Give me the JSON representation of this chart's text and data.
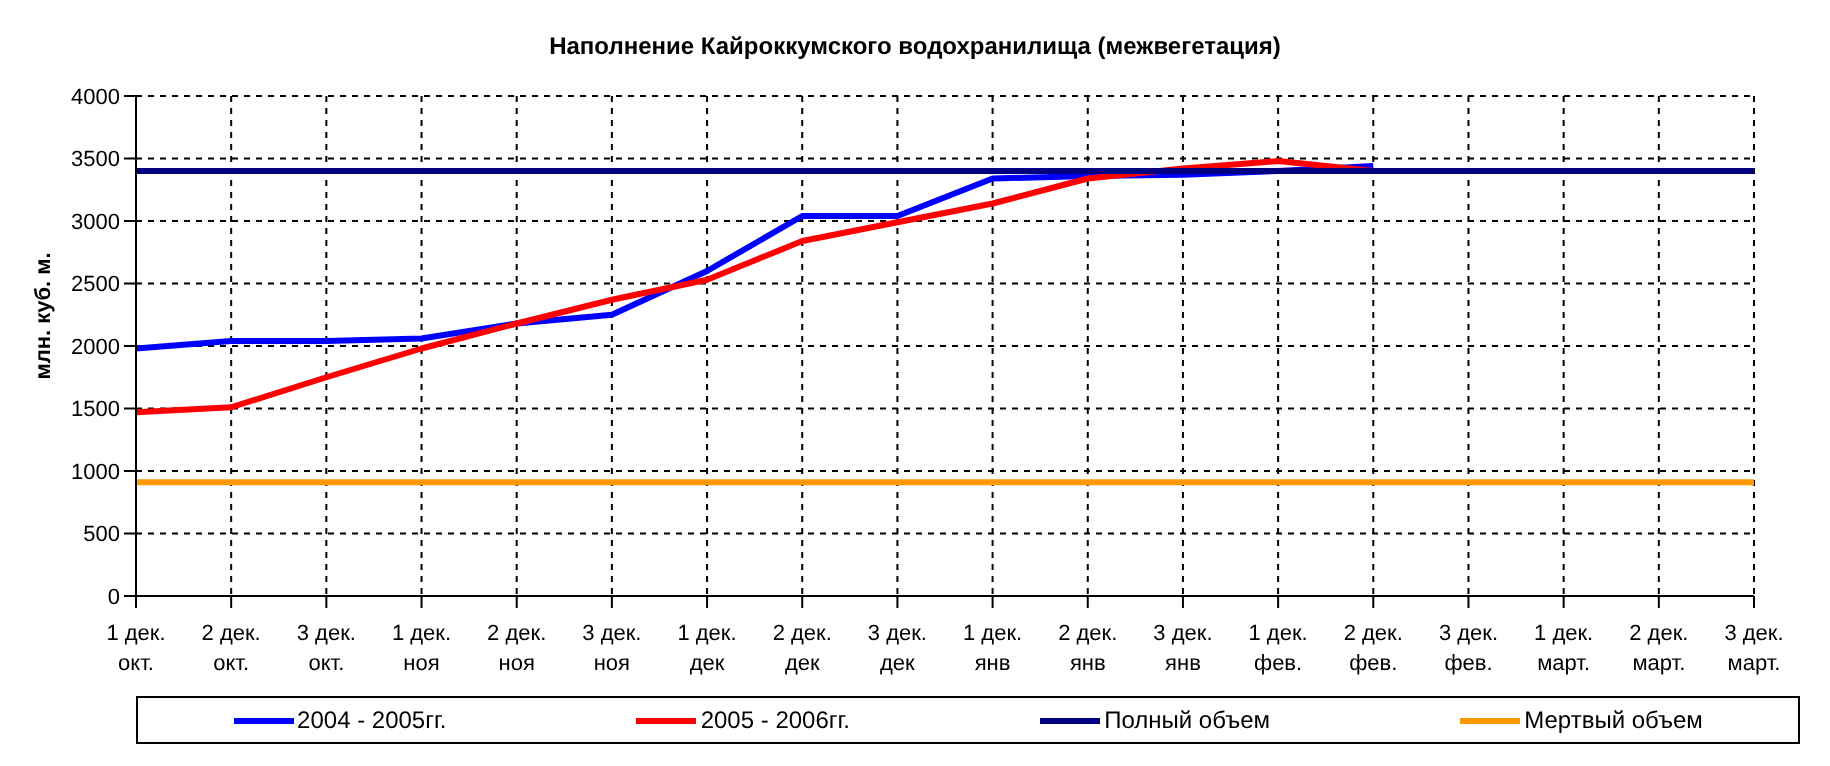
{
  "chart_data": {
    "type": "line",
    "title": "Наполнение Кайроккумского водохранилища (межвегетация)",
    "ylabel": "млн. куб. м.",
    "categories": [
      "1 дек. окт.",
      "2 дек. окт.",
      "3 дек. окт.",
      "1 дек. ноя",
      "2 дек. ноя",
      "3 дек. ноя",
      "1 дек. дек",
      "2 дек. дек",
      "3 дек. дек",
      "1 дек. янв",
      "2 дек. янв",
      "3 дек. янв",
      "1 дек. фев.",
      "2 дек. фев.",
      "3 дек. фев.",
      "1 дек. март.",
      "2 дек. март.",
      "3 дек. март."
    ],
    "series": [
      {
        "name": "2004 - 2005гг.",
        "color": "#0000ff",
        "values": [
          1980,
          2040,
          2040,
          2060,
          2180,
          2250,
          2600,
          3040,
          3040,
          3340,
          3360,
          3370,
          3400,
          3440,
          null,
          null,
          null,
          null
        ]
      },
      {
        "name": "2005 - 2006гг.",
        "color": "#ff0000",
        "values": [
          1470,
          1510,
          1750,
          1980,
          2180,
          2370,
          2530,
          2840,
          2990,
          3140,
          3340,
          3420,
          3480,
          3400,
          null,
          null,
          null,
          null
        ]
      },
      {
        "name": "Полный объем",
        "color": "#000080",
        "values": [
          3400,
          3400,
          3400,
          3400,
          3400,
          3400,
          3400,
          3400,
          3400,
          3400,
          3400,
          3400,
          3400,
          3400,
          3400,
          3400,
          3400,
          3400
        ]
      },
      {
        "name": "Мертвый объем",
        "color": "#ff9900",
        "values": [
          910,
          910,
          910,
          910,
          910,
          910,
          910,
          910,
          910,
          910,
          910,
          910,
          910,
          910,
          910,
          910,
          910,
          910
        ]
      }
    ],
    "ylim": [
      0,
      4000
    ],
    "yticks": [
      0,
      500,
      1000,
      1500,
      2000,
      2500,
      3000,
      3500,
      4000
    ],
    "grid": true,
    "legend": "bottom",
    "marker": "none",
    "line_style": "solid"
  }
}
